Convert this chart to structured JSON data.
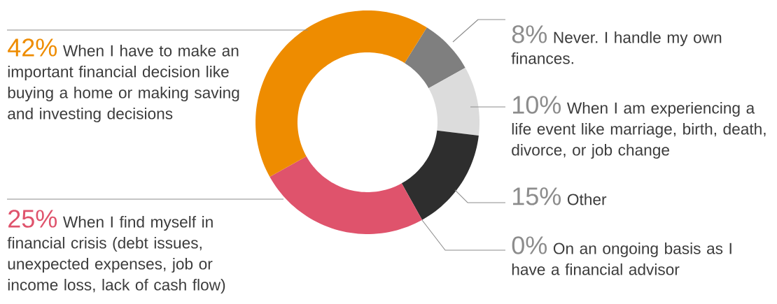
{
  "chart_data": {
    "type": "donut",
    "categories": [
      "Never. I handle my own finances.",
      "When I am experiencing a life event like marriage, birth, death, divorce, or job change",
      "Other",
      "On an ongoing basis as I have a financial advisor",
      "When I find myself in financial crisis (debt issues, unexpected expenses, job or income loss, lack of cash flow)",
      "When I have to make an important financial decision like buying a home or making saving and investing decisions"
    ],
    "values": [
      8,
      10,
      15,
      0,
      25,
      42
    ],
    "value_labels": [
      "8%",
      "10%",
      "15%",
      "0%",
      "25%",
      "42%"
    ],
    "colors": [
      "#7f7f7f",
      "#dcdcdc",
      "#2e2e2e",
      "#9a9a9a",
      "#df536c",
      "#ee8c00"
    ]
  }
}
